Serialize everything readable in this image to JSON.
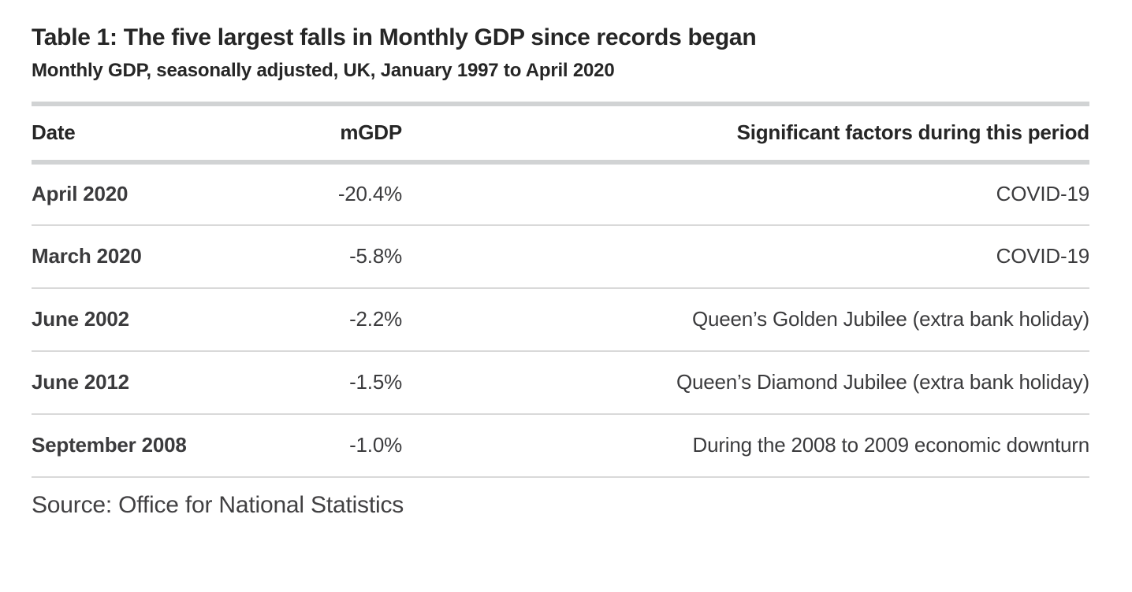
{
  "chart_data": {
    "type": "table",
    "title": "Table 1: The five largest falls in Monthly GDP since records began",
    "subtitle": "Monthly GDP, seasonally adjusted, UK, January 1997 to April 2020",
    "columns": [
      "Date",
      "mGDP",
      "Significant factors during this period"
    ],
    "rows": [
      [
        "April 2020",
        "-20.4%",
        "COVID-19"
      ],
      [
        "March 2020",
        "-5.8%",
        "COVID-19"
      ],
      [
        "June 2002",
        "-2.2%",
        "Queen’s Golden Jubilee (extra bank holiday)"
      ],
      [
        "June 2012",
        "-1.5%",
        "Queen’s Diamond Jubilee (extra bank holiday)"
      ],
      [
        "September 2008",
        "-1.0%",
        "During the 2008 to 2009 economic downturn"
      ]
    ],
    "mgdp_values_pct": [
      -20.4,
      -5.8,
      -2.2,
      -1.5,
      -1.0
    ],
    "source": "Source: Office for National Statistics",
    "layout": {
      "date_column_align": "left",
      "mgdp_column_align": "right",
      "factors_column_align": "right",
      "grid": "horizontal-rules-only"
    }
  },
  "colors": {
    "background": "#ffffff",
    "text_primary": "#262626",
    "text_secondary": "#3b3b3d",
    "source_text": "#414042",
    "border_thick": "#d1d3d4",
    "border_thin": "#d9d9d9"
  }
}
